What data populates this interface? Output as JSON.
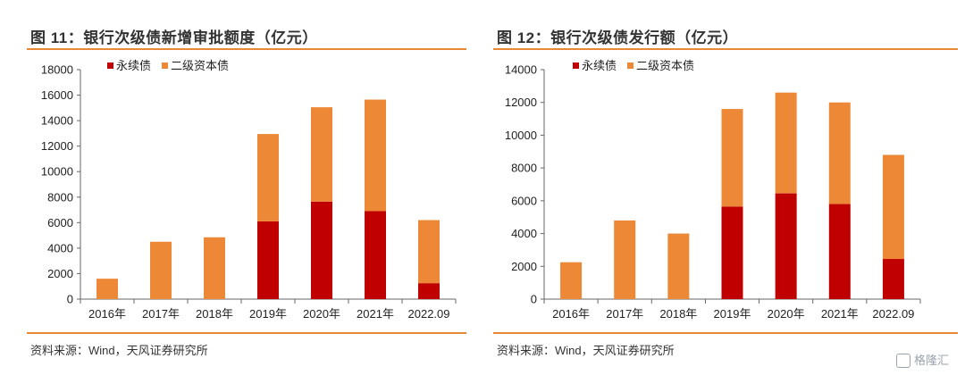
{
  "panels": [
    {
      "title": "图 11：银行次级债新增审批额度（亿元）",
      "source": "资料来源：Wind，天风证券研究所"
    },
    {
      "title": "图 12：银行次级债发行额（亿元）",
      "source": "资料来源：Wind，天风证券研究所"
    }
  ],
  "watermark": "格隆汇",
  "colors": {
    "perpetual": "#c00000",
    "tier2": "#ed8936",
    "accent_line": "#e8893a"
  },
  "chart_data": [
    {
      "type": "bar",
      "stacked": true,
      "title": "图 11：银行次级债新增审批额度（亿元）",
      "categories": [
        "2016年",
        "2017年",
        "2018年",
        "2019年",
        "2020年",
        "2021年",
        "2022.09"
      ],
      "series": [
        {
          "name": "永续债",
          "color": "#c00000",
          "values": [
            0,
            0,
            0,
            6100,
            7650,
            6900,
            1250
          ]
        },
        {
          "name": "二级资本债",
          "color": "#ed8936",
          "values": [
            1600,
            4500,
            4850,
            6850,
            7400,
            8750,
            4950
          ]
        }
      ],
      "ylim": [
        0,
        18000
      ],
      "yticks": [
        0,
        2000,
        4000,
        6000,
        8000,
        10000,
        12000,
        14000,
        16000,
        18000
      ],
      "legend": "top-left",
      "grid": false
    },
    {
      "type": "bar",
      "stacked": true,
      "title": "图 12：银行次级债发行额（亿元）",
      "categories": [
        "2016年",
        "2017年",
        "2018年",
        "2019年",
        "2020年",
        "2021年",
        "2022.09"
      ],
      "series": [
        {
          "name": "永续债",
          "color": "#c00000",
          "values": [
            0,
            0,
            0,
            5650,
            6450,
            5800,
            2450
          ]
        },
        {
          "name": "二级资本债",
          "color": "#ed8936",
          "values": [
            2250,
            4800,
            4000,
            5950,
            6150,
            6200,
            6350
          ]
        }
      ],
      "ylim": [
        0,
        14000
      ],
      "yticks": [
        0,
        2000,
        4000,
        6000,
        8000,
        10000,
        12000,
        14000
      ],
      "legend": "top-left",
      "grid": false
    }
  ]
}
